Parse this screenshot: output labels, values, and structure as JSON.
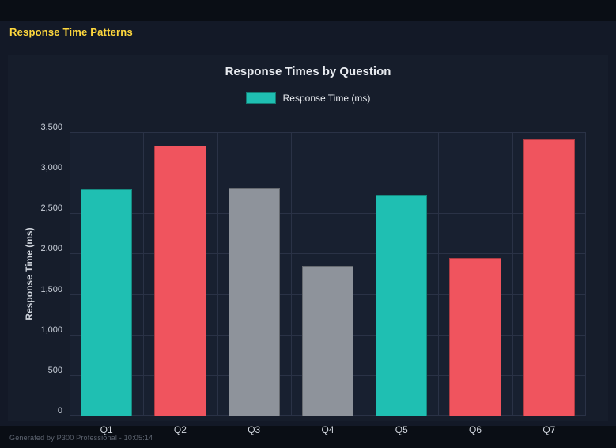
{
  "page": {
    "title": "Response Time Patterns",
    "footer": "Generated by P300 Professional - 10:05:14"
  },
  "chart_data": {
    "type": "bar",
    "title": "Response Times by Question",
    "legend": [
      {
        "label": "Response Time (ms)",
        "color": "#1fbfb2"
      }
    ],
    "legend_position": "top",
    "categories": [
      "Q1",
      "Q2",
      "Q3",
      "Q4",
      "Q5",
      "Q6",
      "Q7"
    ],
    "series": [
      {
        "name": "Response Time (ms)",
        "values": [
          2800,
          3330,
          2810,
          1850,
          2730,
          1950,
          3410
        ]
      }
    ],
    "bar_colors": [
      "#1fbfb2",
      "#f0545e",
      "#8e939b",
      "#8e939b",
      "#1fbfb2",
      "#f0545e",
      "#f0545e"
    ],
    "xlabel": "",
    "ylabel": "Response Time (ms)",
    "ylim": [
      0,
      3500
    ],
    "ytick_step": 500,
    "ytick_labels": [
      "0",
      "500",
      "1,000",
      "1,500",
      "2,000",
      "2,500",
      "3,000",
      "3,500"
    ],
    "grid": true
  },
  "colors": {
    "page_bg": "#0a0e15",
    "panel_bg": "#131927",
    "card_bg": "#161d2b",
    "plot_bg": "#182030",
    "grid": "#2a3246",
    "heading_text": "#ffd83d",
    "title_text": "#e8ebf0",
    "tick_text": "#c9cfd9",
    "footer_text": "#5d6470",
    "teal": "#1fbfb2",
    "red": "#f0545e",
    "gray": "#8e939b"
  }
}
